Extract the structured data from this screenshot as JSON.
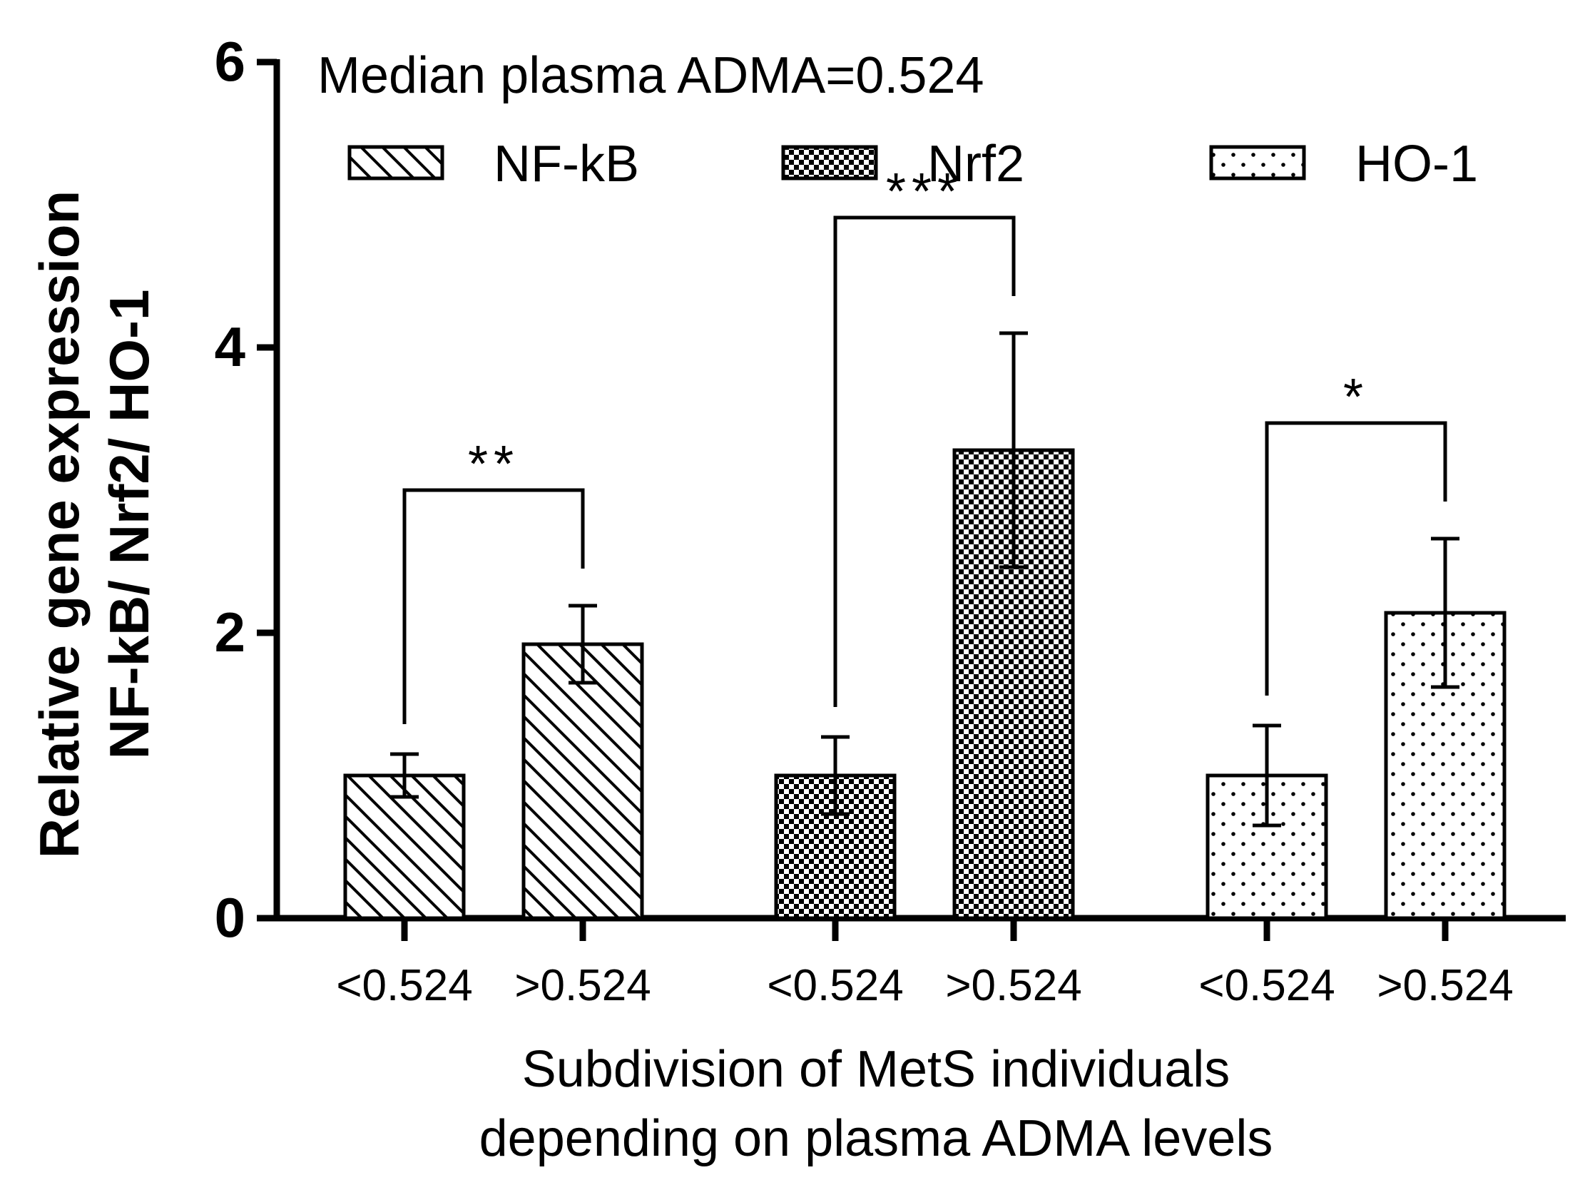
{
  "chart_data": {
    "type": "bar",
    "title": "Median plasma ADMA=0.524",
    "ylabel_line1": "Relative gene expression",
    "ylabel_line2": "NF-kB/ Nrf2/ HO-1",
    "xlabel_line1": "Subdivision of MetS individuals",
    "xlabel_line2": "depending on plasma ADMA levels",
    "ylim": [
      0,
      6
    ],
    "yticks": [
      0,
      2,
      4,
      6
    ],
    "categories": [
      "<0.524",
      ">0.524"
    ],
    "legend_position": "top",
    "series": [
      {
        "name": "NF-kB",
        "pattern": "diagonal-stripes",
        "values": [
          1.0,
          1.92
        ],
        "errors": [
          0.15,
          0.27
        ],
        "significance": "**"
      },
      {
        "name": "Nrf2",
        "pattern": "checkerboard",
        "values": [
          1.0,
          3.28
        ],
        "errors": [
          0.27,
          0.82
        ],
        "significance": "***"
      },
      {
        "name": "HO-1",
        "pattern": "dots",
        "values": [
          1.0,
          2.14
        ],
        "errors": [
          0.35,
          0.52
        ],
        "significance": "*"
      }
    ]
  }
}
